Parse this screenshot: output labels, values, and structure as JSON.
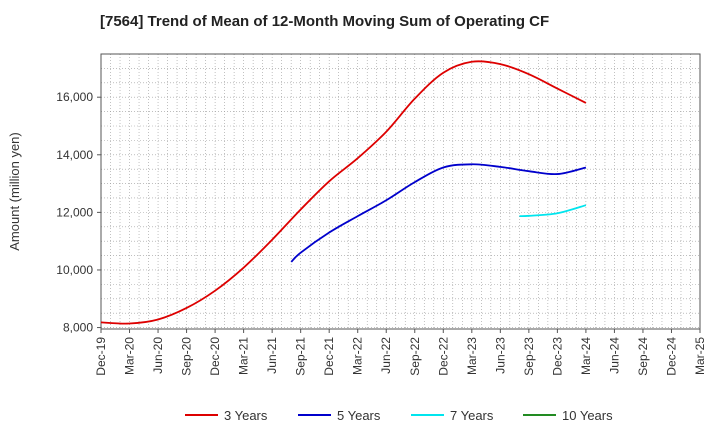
{
  "chart_data": {
    "type": "line",
    "title": "[7564]  Trend of Mean of 12-Month Moving Sum of Operating CF",
    "xlabel": "",
    "ylabel": "Amount (million yen)",
    "x_ticks": [
      "Dec-19",
      "Mar-20",
      "Jun-20",
      "Sep-20",
      "Dec-20",
      "Mar-21",
      "Jun-21",
      "Sep-21",
      "Dec-21",
      "Mar-22",
      "Jun-22",
      "Sep-22",
      "Dec-22",
      "Mar-23",
      "Jun-23",
      "Sep-23",
      "Dec-23",
      "Mar-24",
      "Jun-24",
      "Sep-24",
      "Dec-24",
      "Mar-25"
    ],
    "y_ticks": [
      8000,
      10000,
      12000,
      14000,
      16000
    ],
    "y_tick_labels": [
      "8,000",
      "10,000",
      "12,000",
      "14,000",
      "16,000"
    ],
    "ylim": [
      7950,
      17500
    ],
    "grid": true,
    "legend_position": "bottom",
    "series": [
      {
        "name": "3 Years",
        "color": "#dd0000",
        "points": [
          [
            0,
            8180
          ],
          [
            1,
            8140
          ],
          [
            2,
            8280
          ],
          [
            3,
            8680
          ],
          [
            4,
            9280
          ],
          [
            5,
            10080
          ],
          [
            6,
            11050
          ],
          [
            7,
            12100
          ],
          [
            8,
            13080
          ],
          [
            9,
            13880
          ],
          [
            10,
            14800
          ],
          [
            11,
            15950
          ],
          [
            12,
            16850
          ],
          [
            13,
            17230
          ],
          [
            14,
            17150
          ],
          [
            15,
            16800
          ],
          [
            16,
            16300
          ],
          [
            17,
            15800
          ]
        ]
      },
      {
        "name": "5 Years",
        "color": "#0000cc",
        "points": [
          [
            6.67,
            10280
          ],
          [
            7,
            10600
          ],
          [
            8,
            11300
          ],
          [
            9,
            11870
          ],
          [
            10,
            12420
          ],
          [
            11,
            13050
          ],
          [
            12,
            13560
          ],
          [
            13,
            13670
          ],
          [
            14,
            13580
          ],
          [
            15,
            13430
          ],
          [
            16,
            13330
          ],
          [
            17,
            13560
          ]
        ]
      },
      {
        "name": "7 Years",
        "color": "#00e5ee",
        "points": [
          [
            14.67,
            11870
          ],
          [
            15,
            11880
          ],
          [
            16,
            11970
          ],
          [
            17,
            12250
          ]
        ]
      },
      {
        "name": "10 Years",
        "color": "#228B22",
        "points": []
      }
    ]
  }
}
